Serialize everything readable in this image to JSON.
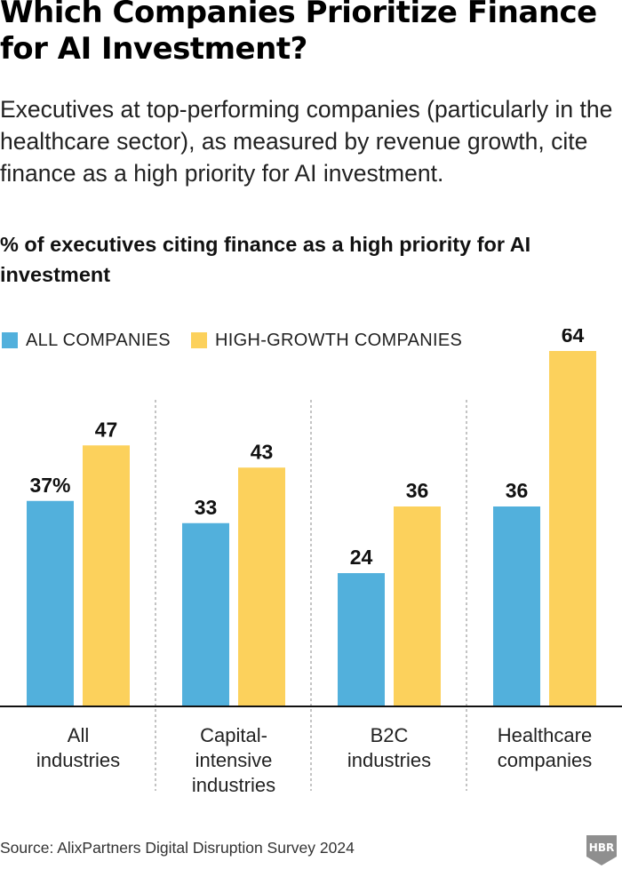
{
  "header": {
    "title": "Which Companies Prioritize Finance for AI Investment?",
    "subtitle": "Executives at top-performing companies (particularly in the healthcare sector), as measured by revenue growth, cite finance as a high priority for AI investment."
  },
  "colors": {
    "all_companies": "#52B0DC",
    "high_growth": "#FCD15C",
    "axis": "#111111",
    "divider": "#8a8a8a"
  },
  "chart_data": {
    "type": "bar",
    "title": "% of executives citing finance as a high priority for AI investment",
    "xlabel": "",
    "ylabel": "",
    "ylim": [
      0,
      68
    ],
    "grid": false,
    "legend_position": "top-left",
    "categories": [
      [
        "All",
        "industries"
      ],
      [
        "Capital-",
        "intensive",
        "industries"
      ],
      [
        "B2C",
        "industries"
      ],
      [
        "Healthcare",
        "companies"
      ]
    ],
    "series": [
      {
        "name": "ALL COMPANIES",
        "values": [
          37,
          33,
          24,
          36
        ],
        "data_labels": [
          "37%",
          "33",
          "24",
          "36"
        ]
      },
      {
        "name": "HIGH-GROWTH COMPANIES",
        "values": [
          47,
          43,
          36,
          64
        ],
        "data_labels": [
          "47",
          "43",
          "36",
          "64"
        ]
      }
    ]
  },
  "footer": {
    "source": "Source: AlixPartners Digital Disruption Survey 2024",
    "logo_text": "HBR"
  }
}
